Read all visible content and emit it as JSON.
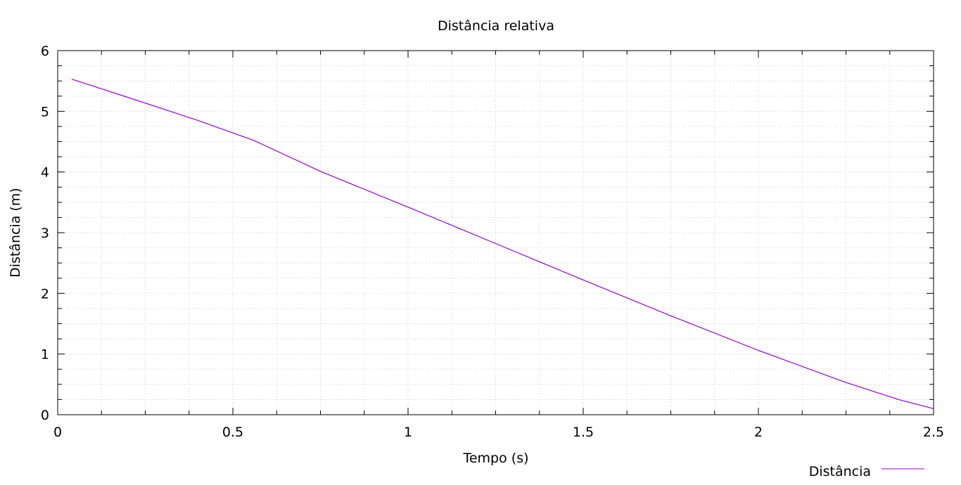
{
  "chart_data": {
    "type": "line",
    "title": "Distância relativa",
    "xlabel": "Tempo (s)",
    "ylabel": "Distância (m)",
    "xlim": [
      0,
      2.5
    ],
    "ylim": [
      0,
      6
    ],
    "x_ticks": [
      "0",
      "0.5",
      "1",
      "1.5",
      "2",
      "2.5"
    ],
    "y_ticks": [
      "0",
      "1",
      "2",
      "3",
      "4",
      "5",
      "6"
    ],
    "x_tick_values": [
      0,
      0.5,
      1,
      1.5,
      2,
      2.5
    ],
    "y_tick_values": [
      0,
      1,
      2,
      3,
      4,
      5,
      6
    ],
    "x_minor_step": 0.125,
    "y_minor_step": 0.25,
    "grid": true,
    "legend_position": "bottom-right",
    "series": [
      {
        "name": "Distância",
        "color": "#9400D3",
        "x": [
          0.04,
          0.2,
          0.4,
          0.56,
          0.75,
          1.0,
          1.25,
          1.5,
          1.75,
          2.0,
          2.25,
          2.4,
          2.5
        ],
        "y": [
          5.53,
          5.23,
          4.85,
          4.52,
          4.01,
          3.42,
          2.82,
          2.22,
          1.63,
          1.06,
          0.53,
          0.25,
          0.1
        ]
      }
    ]
  }
}
